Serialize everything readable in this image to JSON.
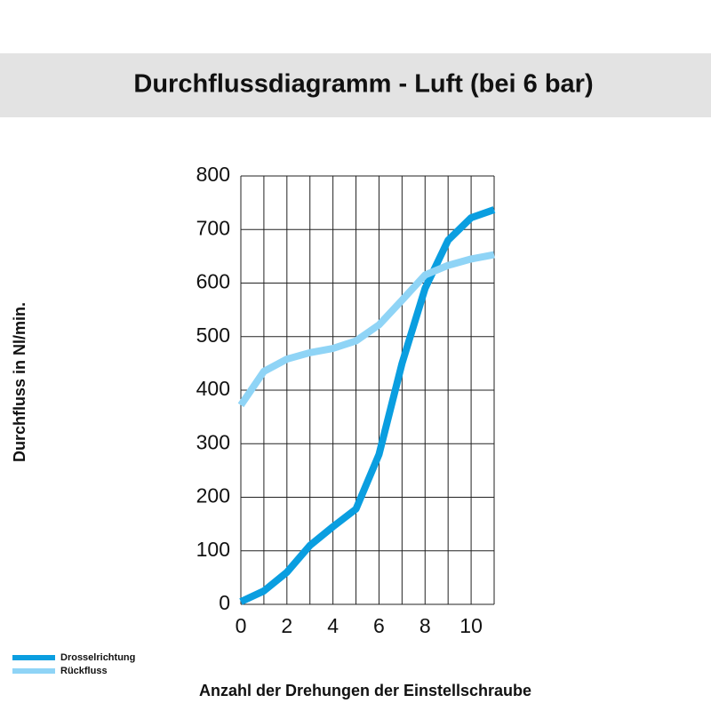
{
  "chart_data": {
    "type": "line",
    "title": "Durchflussdiagramm - Luft (bei 6 bar)",
    "xlabel": "Anzahl der Drehungen der Einstellschraube",
    "ylabel": "Durchfluss in Nl/min.",
    "x": [
      0,
      1,
      2,
      3,
      4,
      5,
      6,
      7,
      8,
      9,
      10,
      11
    ],
    "series": [
      {
        "name": "Drosselrichtung",
        "color": "#0a9ee0",
        "values": [
          5,
          25,
          60,
          110,
          145,
          178,
          280,
          450,
          590,
          680,
          722,
          737
        ]
      },
      {
        "name": "Rückfluss",
        "color": "#8fd4f6",
        "values": [
          372,
          435,
          458,
          470,
          478,
          492,
          522,
          568,
          615,
          633,
          645,
          653
        ]
      }
    ],
    "xlim": [
      0,
      11
    ],
    "xticks": [
      0,
      2,
      4,
      6,
      8,
      10
    ],
    "ylim": [
      0,
      800
    ],
    "yticks": [
      0,
      100,
      200,
      300,
      400,
      500,
      600,
      700,
      800
    ],
    "grid": true,
    "legend": "bottom-left"
  }
}
